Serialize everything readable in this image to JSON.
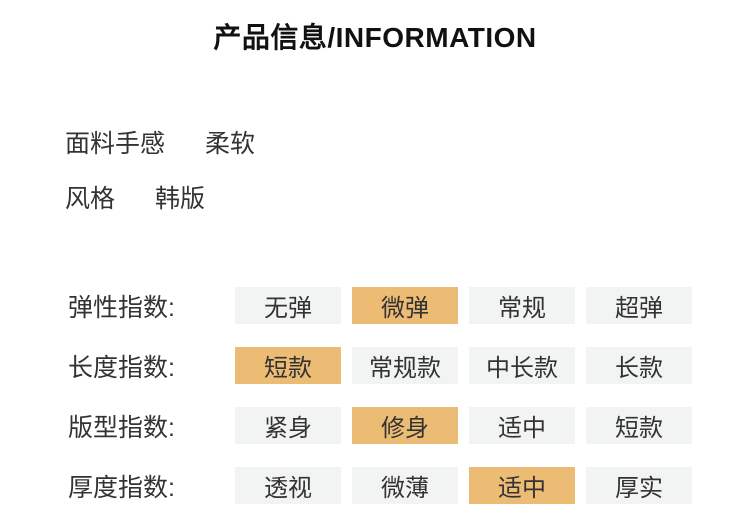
{
  "title": "产品信息/INFORMATION",
  "info": [
    {
      "label": "面料手感",
      "value": "柔软"
    },
    {
      "label": "风格",
      "value": "韩版"
    }
  ],
  "specs": {
    "rows": [
      {
        "label": "弹性指数:",
        "options": [
          "无弹",
          "微弹",
          "常规",
          "超弹"
        ],
        "selected": 1
      },
      {
        "label": "长度指数:",
        "options": [
          "短款",
          "常规款",
          "中长款",
          "长款"
        ],
        "selected": 0
      },
      {
        "label": "版型指数:",
        "options": [
          "紧身",
          "修身",
          "适中",
          "短款"
        ],
        "selected": 1
      },
      {
        "label": "厚度指数:",
        "options": [
          "透视",
          "微薄",
          "适中",
          "厚实"
        ],
        "selected": 2
      }
    ]
  },
  "colors": {
    "highlight": "#edbc74",
    "cell_bg": "#f2f4f3",
    "text": "#333333",
    "title": "#111111",
    "background": "#ffffff"
  }
}
